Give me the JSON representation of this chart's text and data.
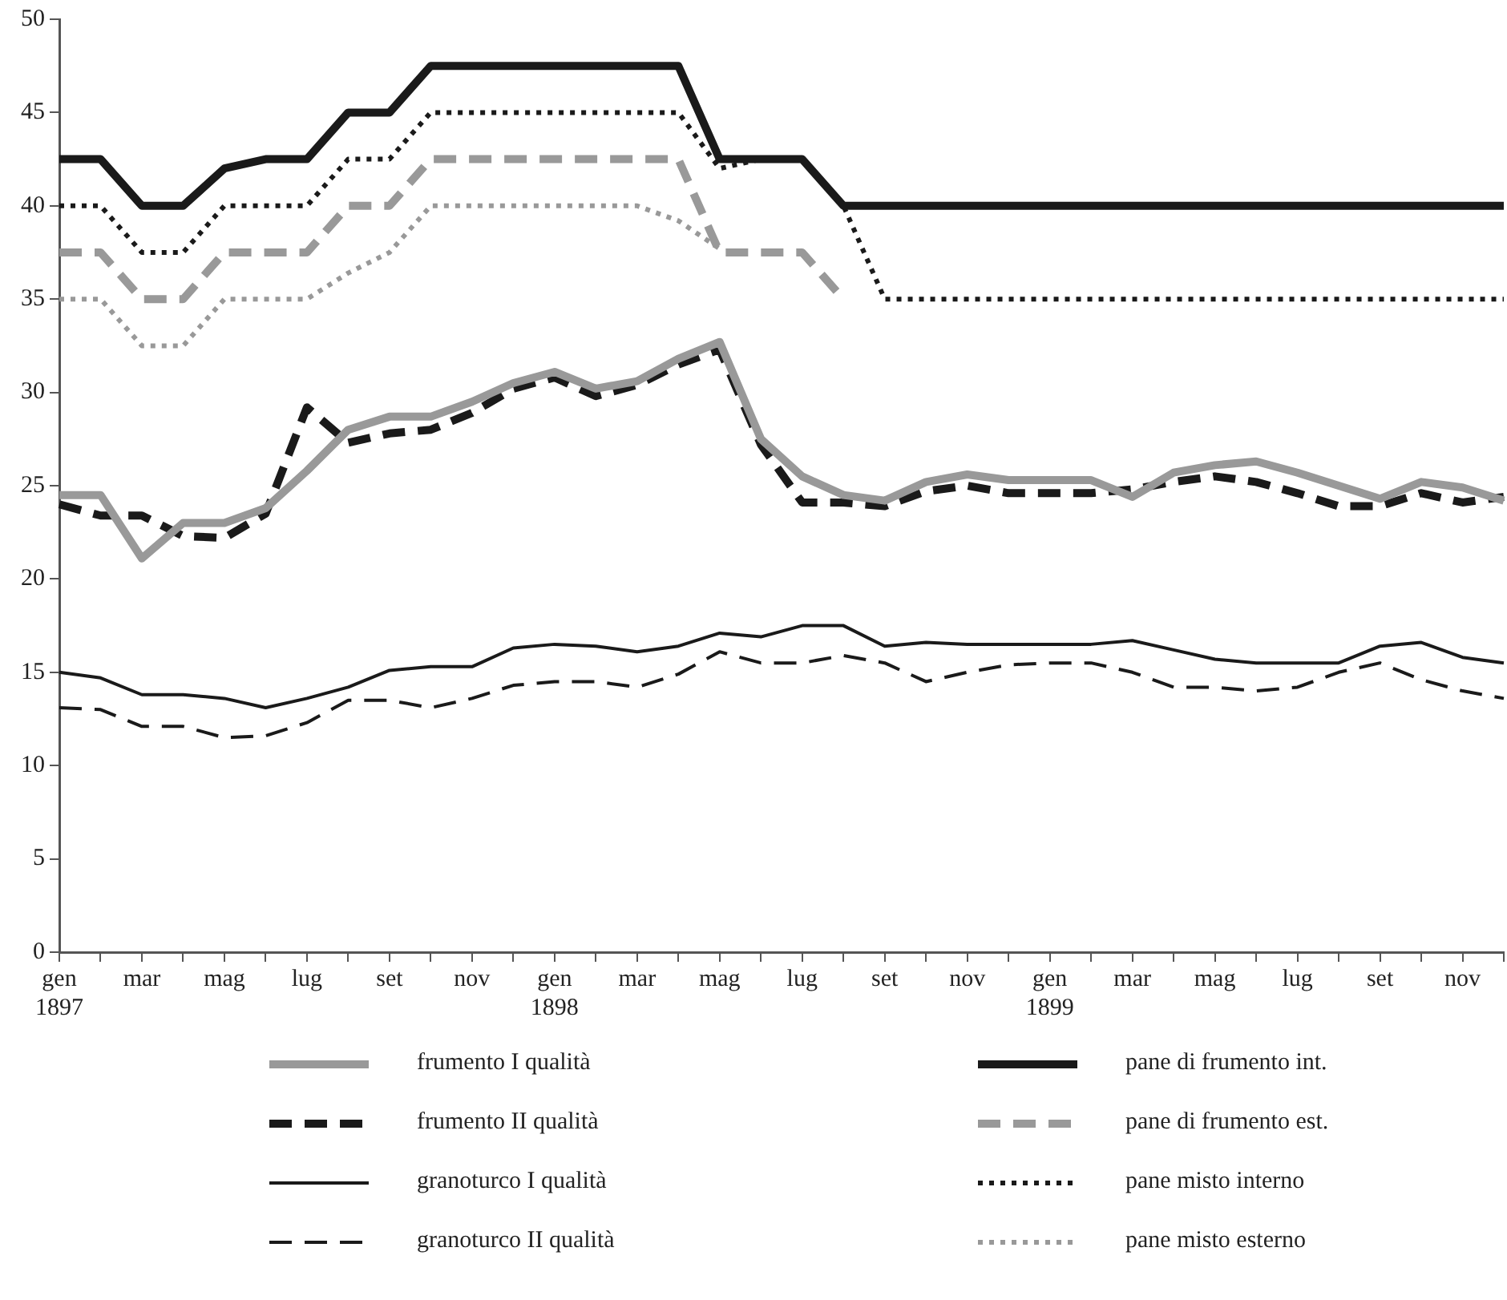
{
  "chart_data": {
    "type": "line",
    "categories": [
      "gen\n1897",
      null,
      "mar",
      null,
      "mag",
      null,
      "lug",
      null,
      "set",
      null,
      "nov",
      null,
      "gen\n1898",
      null,
      "mar",
      null,
      "mag",
      null,
      "lug",
      null,
      "set",
      null,
      "nov",
      null,
      "gen\n1899",
      null,
      "mar",
      null,
      "mag",
      null,
      "lug",
      null,
      "set",
      null,
      "nov",
      null
    ],
    "ylim": [
      0,
      50
    ],
    "yticks": [
      0,
      5,
      10,
      15,
      20,
      25,
      30,
      35,
      40,
      45,
      50
    ],
    "grid": false,
    "legend": "bottom",
    "marker": "none",
    "series": [
      {
        "name": "frumento I qualità",
        "color": "#999999",
        "line_style": "solid",
        "values": [
          24.5,
          24.5,
          21.1,
          23,
          23,
          23.8,
          25.8,
          28,
          28.7,
          28.7,
          29.5,
          30.5,
          31.1,
          30.2,
          30.6,
          31.8,
          32.7,
          27.5,
          25.5,
          24.5,
          24.2,
          25.2,
          25.6,
          25.3,
          25.3,
          25.3,
          24.4,
          25.7,
          26.1,
          26.3,
          25.7,
          25,
          24.3,
          25.2,
          24.9,
          24.2
        ]
      },
      {
        "name": "frumento II qualità",
        "color": "#1a1a1a",
        "line_style": "dashed",
        "values": [
          24,
          23.4,
          23.4,
          22.3,
          22.2,
          23.5,
          29.2,
          27.3,
          27.8,
          28,
          28.9,
          30.2,
          30.8,
          29.8,
          30.4,
          31.5,
          32.3,
          27.2,
          24.1,
          24.1,
          23.9,
          24.7,
          25,
          24.6,
          24.6,
          24.6,
          24.8,
          25.2,
          25.5,
          25.2,
          24.6,
          23.9,
          23.9,
          24.6,
          24.1,
          24.4
        ]
      },
      {
        "name": "granoturco I qualità",
        "color": "#1a1a1a",
        "line_style": "solid",
        "values": [
          15,
          14.7,
          13.8,
          13.8,
          13.6,
          13.1,
          13.6,
          14.2,
          15.1,
          15.3,
          15.3,
          16.3,
          16.5,
          16.4,
          16.1,
          16.4,
          17.1,
          16.9,
          17.5,
          17.5,
          16.4,
          16.6,
          16.5,
          16.5,
          16.5,
          16.5,
          16.7,
          16.2,
          15.7,
          15.5,
          15.5,
          15.5,
          16.4,
          16.6,
          15.8,
          15.5
        ]
      },
      {
        "name": "granoturco II qualità",
        "color": "#1a1a1a",
        "line_style": "dashed",
        "values": [
          13.1,
          13,
          12.1,
          12.1,
          11.5,
          11.6,
          12.3,
          13.5,
          13.5,
          13.1,
          13.6,
          14.3,
          14.5,
          14.5,
          14.2,
          14.9,
          16.1,
          15.5,
          15.5,
          15.9,
          15.5,
          14.5,
          15,
          15.4,
          15.5,
          15.5,
          15,
          14.2,
          14.2,
          14,
          14.2,
          15,
          15.5,
          14.6,
          14,
          13.6
        ]
      },
      {
        "name": "pane di frumento int.",
        "color": "#1a1a1a",
        "line_style": "solid",
        "values": [
          42.5,
          42.5,
          40,
          40,
          42,
          42.5,
          42.5,
          45,
          45,
          47.5,
          47.5,
          47.5,
          47.5,
          47.5,
          47.5,
          47.5,
          42.5,
          42.5,
          42.5,
          40,
          40,
          40,
          40,
          40,
          40,
          40,
          40,
          40,
          40,
          40,
          40,
          40,
          40,
          40,
          40,
          40
        ]
      },
      {
        "name": "pane di frumento est.",
        "color": "#999999",
        "line_style": "dashed",
        "values": [
          37.5,
          37.5,
          35,
          35,
          37.5,
          37.5,
          37.5,
          40,
          40,
          42.5,
          42.5,
          42.5,
          42.5,
          42.5,
          42.5,
          42.5,
          37.5,
          37.5,
          37.5,
          35,
          null,
          null,
          null,
          null,
          null,
          null,
          null,
          null,
          null,
          null,
          null,
          null,
          null,
          null,
          null,
          null
        ]
      },
      {
        "name": "pane misto interno",
        "color": "#1a1a1a",
        "line_style": "dotted",
        "values": [
          40,
          40,
          37.5,
          37.5,
          40,
          40,
          40,
          42.5,
          42.5,
          45,
          45,
          45,
          45,
          45,
          45,
          45,
          42,
          42.5,
          42.5,
          40,
          35,
          35,
          35,
          35,
          35,
          35,
          35,
          35,
          35,
          35,
          35,
          35,
          35,
          35,
          35,
          35
        ]
      },
      {
        "name": "pane misto esterno",
        "color": "#999999",
        "line_style": "dotted",
        "values": [
          35,
          35,
          32.5,
          32.5,
          35,
          35,
          35,
          36.4,
          37.5,
          40,
          40,
          40,
          40,
          40,
          40,
          39.2,
          37.7,
          null,
          null,
          null,
          null,
          null,
          null,
          null,
          null,
          null,
          null,
          null,
          null,
          null,
          null,
          null,
          null,
          null,
          null,
          null
        ]
      }
    ]
  }
}
